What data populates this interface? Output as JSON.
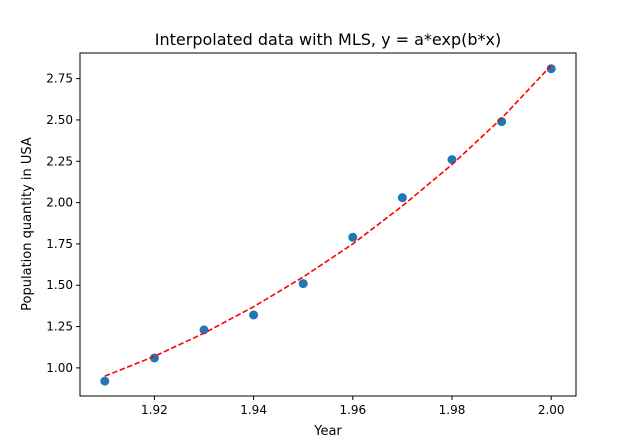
{
  "chart_data": {
    "type": "scatter",
    "title": "Interpolated data with MLS, y = a*exp(b*x)",
    "xlabel": "Year",
    "ylabel": "Population quantity in USA",
    "xlim": [
      1.905,
      2.005
    ],
    "ylim": [
      0.83,
      2.905
    ],
    "xticks": [
      1.92,
      1.94,
      1.96,
      1.98,
      2.0
    ],
    "xtick_labels": [
      "1.92",
      "1.94",
      "1.96",
      "1.98",
      "2.00"
    ],
    "yticks": [
      1.0,
      1.25,
      1.5,
      1.75,
      2.0,
      2.25,
      2.5,
      2.75
    ],
    "ytick_labels": [
      "1.00",
      "1.25",
      "1.50",
      "1.75",
      "2.00",
      "2.25",
      "2.50",
      "2.75"
    ],
    "grid": false,
    "series": [
      {
        "kind": "scatter",
        "color": "#1f77b4",
        "x": [
          1.91,
          1.92,
          1.93,
          1.94,
          1.95,
          1.96,
          1.97,
          1.98,
          1.99,
          2.0
        ],
        "y": [
          0.92,
          1.06,
          1.23,
          1.32,
          1.51,
          1.79,
          2.03,
          2.26,
          2.49,
          2.81
        ]
      },
      {
        "kind": "line",
        "style": "dashed",
        "color": "#ff0000",
        "x": [
          1.91,
          1.92,
          1.93,
          1.94,
          1.95,
          1.96,
          1.97,
          1.98,
          1.99,
          2.0
        ],
        "y": [
          0.95,
          1.07,
          1.21,
          1.37,
          1.55,
          1.75,
          1.98,
          2.23,
          2.51,
          2.83
        ]
      }
    ]
  }
}
